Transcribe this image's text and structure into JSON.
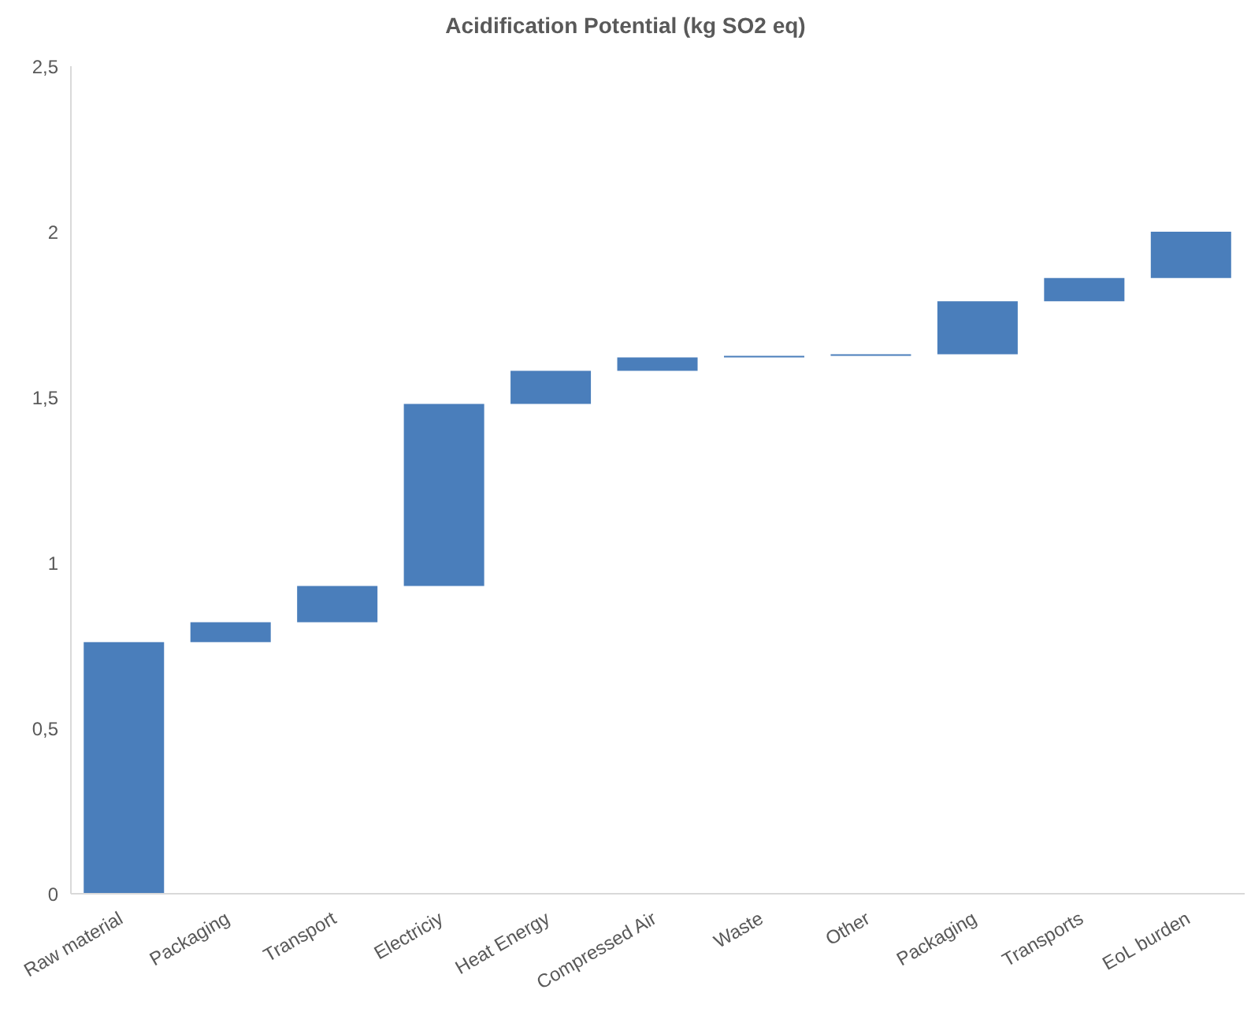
{
  "chart_data": {
    "type": "bar",
    "title": "Acidification Potential (kg SO2 eq)",
    "categories": [
      "Raw material",
      "Packaging",
      "Transport",
      "Electriciy",
      "Heat Energy",
      "Compressed Air",
      "Waste",
      "Other",
      "Packaging",
      "Transports",
      "EoL burden"
    ],
    "base": [
      0,
      0.76,
      0.82,
      0.93,
      1.48,
      1.58,
      1.62,
      1.625,
      1.63,
      1.79,
      1.86
    ],
    "values": [
      0.76,
      0.06,
      0.11,
      0.55,
      0.1,
      0.04,
      0.005,
      0.003,
      0.16,
      0.07,
      0.14
    ],
    "color": "#4a7ebb",
    "ylim": [
      0,
      2.5
    ],
    "yticks": [
      0,
      {
        "value": 0.5,
        "label": "0,5"
      },
      1,
      {
        "value": 1.5,
        "label": "1,5"
      },
      2,
      {
        "value": 2.5,
        "label": "2,5"
      }
    ],
    "grid": false
  }
}
